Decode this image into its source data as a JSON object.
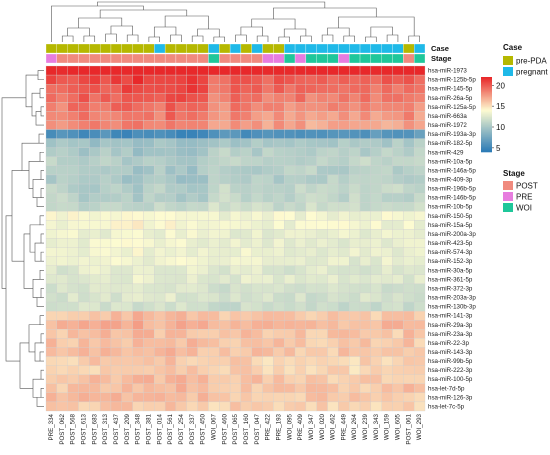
{
  "chart_data": {
    "type": "heatmap",
    "rows": [
      "hsa-miR-1973",
      "hsa-miR-125b-5p",
      "hsa-miR-145-5p",
      "hsa-miR-26a-5p",
      "hsa-miR-125a-5p",
      "hsa-miR-663a",
      "hsa-miR-1972",
      "hsa-miR-193a-3p",
      "hsa-miR-182-5p",
      "hsa-miR-429",
      "hsa-miR-10a-5p",
      "hsa-miR-146a-5p",
      "hsa-miR-409-3p",
      "hsa-miR-196b-5p",
      "hsa-miR-146b-5p",
      "hsa-miR-10b-5p",
      "hsa-miR-150-5p",
      "hsa-miR-15a-5p",
      "hsa-miR-200a-3p",
      "hsa-miR-423-5p",
      "hsa-miR-574-3p",
      "hsa-miR-152-3p",
      "hsa-miR-30a-5p",
      "hsa-miR-361-5p",
      "hsa-miR-372-3p",
      "hsa-miR-203a-3p",
      "hsa-miR-130b-3p",
      "hsa-miR-141-3p",
      "hsa-miR-29a-3p",
      "hsa-miR-23a-3p",
      "hsa-miR-22-3p",
      "hsa-miR-143-3p",
      "hsa-miR-99b-5p",
      "hsa-miR-222-3p",
      "hsa-miR-100-5p",
      "hsa-let-7d-5p",
      "hsa-miR-126-3p",
      "hsa-let-7c-5p"
    ],
    "columns": [
      "PRE_334",
      "POST_062",
      "POST_568",
      "POST_613",
      "POST_683",
      "POST_313",
      "POST_437",
      "POST_209",
      "POST_348",
      "POST_381",
      "POST_014",
      "POST_561",
      "POST_254",
      "POST_337",
      "POST_450",
      "WOI_067",
      "POST_460",
      "POST_065",
      "POST_160",
      "POST_047",
      "PRE_422",
      "PRE_193",
      "WOI_095",
      "PRE_409",
      "WOI_347",
      "WOI_020",
      "WOI_462",
      "PRE_449",
      "WOI_264",
      "WOI_239",
      "WOI_343",
      "WOI_159",
      "WOI_605",
      "POST_061",
      "WOI_293"
    ],
    "case_annotation": [
      "pre-PDA",
      "pre-PDA",
      "pre-PDA",
      "pre-PDA",
      "pre-PDA",
      "pre-PDA",
      "pre-PDA",
      "pre-PDA",
      "pre-PDA",
      "pre-PDA",
      "pregnant",
      "pre-PDA",
      "pre-PDA",
      "pre-PDA",
      "pre-PDA",
      "pregnant",
      "pre-PDA",
      "pregnant",
      "pre-PDA",
      "pregnant",
      "pre-PDA",
      "pre-PDA",
      "pregnant",
      "pregnant",
      "pregnant",
      "pregnant",
      "pregnant",
      "pregnant",
      "pregnant",
      "pregnant",
      "pregnant",
      "pregnant",
      "pregnant",
      "pre-PDA",
      "pregnant"
    ],
    "stage_annotation": [
      "PRE",
      "POST",
      "POST",
      "POST",
      "POST",
      "POST",
      "POST",
      "POST",
      "POST",
      "POST",
      "POST",
      "POST",
      "POST",
      "POST",
      "POST",
      "WOI",
      "POST",
      "POST",
      "POST",
      "POST",
      "PRE",
      "PRE",
      "WOI",
      "PRE",
      "WOI",
      "WOI",
      "WOI",
      "PRE",
      "WOI",
      "WOI",
      "WOI",
      "WOI",
      "WOI",
      "POST",
      "WOI"
    ],
    "row_base": [
      22.5,
      20.0,
      19.5,
      19.0,
      18.5,
      18.0,
      17.5,
      6.0,
      10.0,
      10.5,
      11.0,
      10.5,
      10.5,
      11.0,
      11.0,
      11.5,
      13.5,
      13.5,
      13.0,
      13.0,
      13.0,
      13.0,
      12.5,
      12.5,
      12.0,
      12.0,
      11.5,
      16.0,
      16.5,
      16.0,
      16.0,
      16.0,
      15.5,
      15.5,
      16.0,
      16.0,
      16.0,
      15.5
    ],
    "col_offset": [
      0.4,
      -0.2,
      0.6,
      0.9,
      0.8,
      0.7,
      1.0,
      1.2,
      1.6,
      1.1,
      0.4,
      1.5,
      1.3,
      1.4,
      0.9,
      -0.5,
      -0.6,
      0.3,
      0.5,
      0.1,
      -0.2,
      0.2,
      -0.3,
      0.0,
      -0.4,
      -0.1,
      -0.3,
      -0.2,
      -0.5,
      -0.1,
      -0.3,
      -0.2,
      -0.4,
      0.3,
      -0.6
    ],
    "colorbar": {
      "min": 4,
      "max": 22,
      "ticks": [
        5,
        10,
        15,
        20
      ]
    },
    "colors": {
      "low": "#2c7bb6",
      "mid": "#fdfbd1",
      "high": "#e8282a"
    },
    "legend": {
      "case_title": "Case",
      "case_entries": [
        {
          "label": "pre-PDA",
          "color": "#b5b800"
        },
        {
          "label": "pregnant",
          "color": "#1fb9e8"
        }
      ],
      "stage_title": "Stage",
      "stage_entries": [
        {
          "label": "POST",
          "color": "#f08a7e"
        },
        {
          "label": "PRE",
          "color": "#e77ddf"
        },
        {
          "label": "WOI",
          "color": "#1fc79a"
        }
      ]
    },
    "track_labels": {
      "case": "Case",
      "stage": "Stage"
    }
  }
}
